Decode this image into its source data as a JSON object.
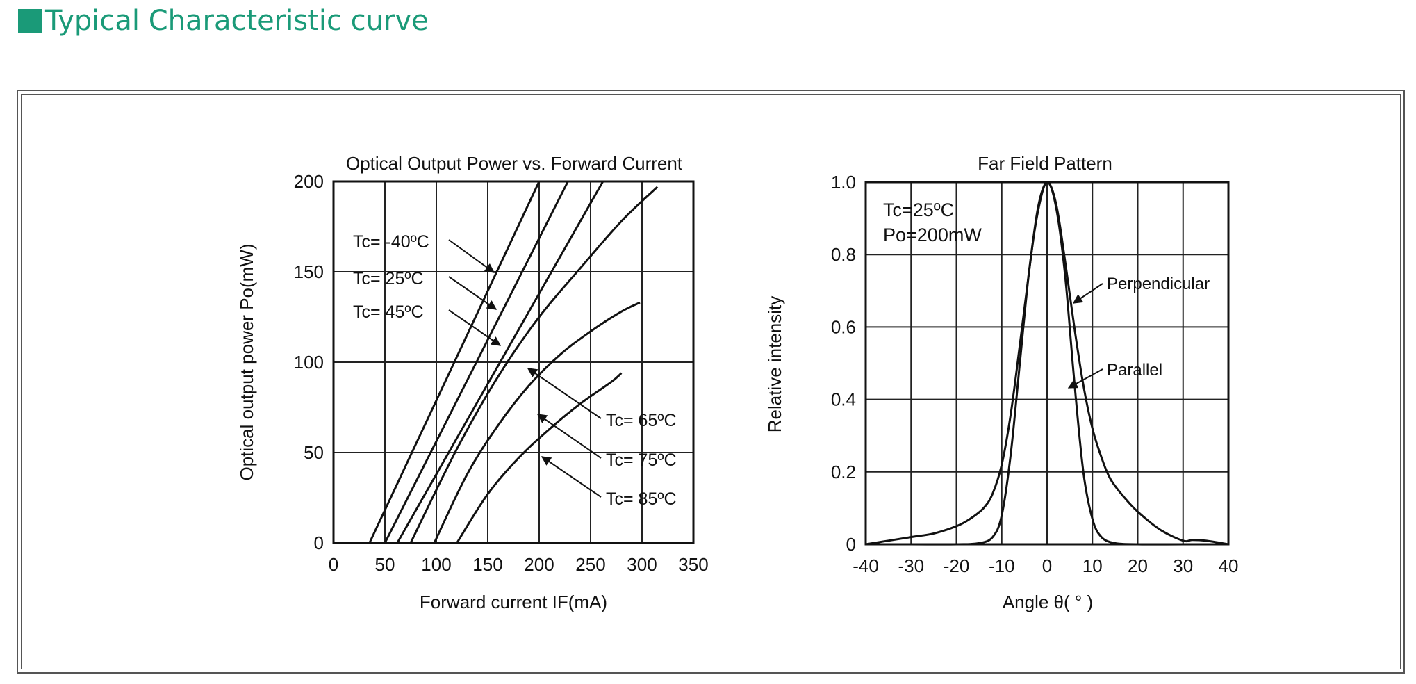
{
  "header": {
    "title": "Typical Characteristic curve",
    "accent_color": "#1a9a78"
  },
  "chart_data": [
    {
      "type": "line",
      "title": "Optical Output Power vs. Forward Current",
      "xlabel": "Forward current IF(mA)",
      "ylabel": "Optical output power Po(mW)",
      "xlim": [
        0,
        350
      ],
      "ylim": [
        0,
        200
      ],
      "xticks": [
        "0",
        "50",
        "100",
        "150",
        "200",
        "250",
        "300",
        "350"
      ],
      "yticks": [
        "0",
        "50",
        "100",
        "150",
        "200"
      ],
      "grid": true,
      "series": [
        {
          "name": "Tc= -40°C",
          "x": [
            35,
            200
          ],
          "y": [
            0,
            200
          ]
        },
        {
          "name": "Tc= 25°C",
          "x": [
            50,
            228
          ],
          "y": [
            0,
            200
          ]
        },
        {
          "name": "Tc= 45°C",
          "x": [
            62,
            262
          ],
          "y": [
            0,
            200
          ]
        },
        {
          "name": "Tc= 65°C",
          "x": [
            75,
            120,
            160,
            200,
            240,
            280,
            315
          ],
          "y": [
            0,
            52,
            92,
            125,
            152,
            178,
            197
          ]
        },
        {
          "name": "Tc= 75°C",
          "x": [
            98,
            130,
            160,
            190,
            220,
            250,
            280,
            298
          ],
          "y": [
            0,
            38,
            65,
            87,
            104,
            117,
            128,
            133
          ]
        },
        {
          "name": "Tc= 85°C",
          "x": [
            120,
            150,
            180,
            210,
            240,
            270,
            280
          ],
          "y": [
            0,
            27,
            47,
            63,
            77,
            89,
            94
          ]
        }
      ]
    },
    {
      "type": "line",
      "title": "Far Field Pattern",
      "xlabel": "Angle θ( ° )",
      "ylabel": "Relative intensity",
      "xlim": [
        -40,
        40
      ],
      "ylim": [
        0,
        1.0
      ],
      "xticks": [
        "-40",
        "-30",
        "-20",
        "-10",
        "0",
        "10",
        "20",
        "30",
        "40"
      ],
      "yticks": [
        "0",
        "0.2",
        "0.4",
        "0.6",
        "0.8",
        "1.0"
      ],
      "grid": true,
      "annotation_lines": [
        "Tc=25ºC",
        "Po=200mW"
      ],
      "series": [
        {
          "name": "Perpendicular",
          "x": [
            -40,
            -35,
            -30,
            -25,
            -20,
            -17,
            -14,
            -12,
            -10,
            -8,
            -6,
            -4,
            -2,
            0,
            2,
            4,
            6,
            8,
            10,
            12,
            14,
            17,
            20,
            25,
            30,
            32,
            35,
            40
          ],
          "y": [
            0.0,
            0.01,
            0.02,
            0.03,
            0.05,
            0.07,
            0.1,
            0.14,
            0.22,
            0.36,
            0.55,
            0.75,
            0.93,
            1.0,
            0.94,
            0.78,
            0.6,
            0.44,
            0.32,
            0.24,
            0.18,
            0.13,
            0.09,
            0.04,
            0.01,
            0.012,
            0.01,
            0.0
          ]
        },
        {
          "name": "Parallel",
          "x": [
            -40,
            -30,
            -20,
            -15,
            -12,
            -10,
            -8,
            -6,
            -4,
            -2,
            0,
            2,
            4,
            6,
            8,
            10,
            12,
            15,
            20,
            30,
            40
          ],
          "y": [
            0,
            0,
            0,
            0.003,
            0.02,
            0.08,
            0.25,
            0.5,
            0.75,
            0.92,
            1.0,
            0.93,
            0.74,
            0.45,
            0.2,
            0.07,
            0.02,
            0.003,
            0,
            0,
            0
          ]
        }
      ]
    }
  ],
  "annotations": {
    "left": [
      {
        "label": "Tc= -40ºC",
        "series": 0
      },
      {
        "label": "Tc= 25ºC",
        "series": 1
      },
      {
        "label": "Tc= 45ºC",
        "series": 2
      },
      {
        "label": "Tc= 65ºC",
        "series": 3
      },
      {
        "label": "Tc= 75ºC",
        "series": 4
      },
      {
        "label": "Tc= 85ºC",
        "series": 5
      }
    ],
    "right": [
      {
        "label": "Perpendicular",
        "series": 0
      },
      {
        "label": "Parallel",
        "series": 1
      }
    ]
  }
}
